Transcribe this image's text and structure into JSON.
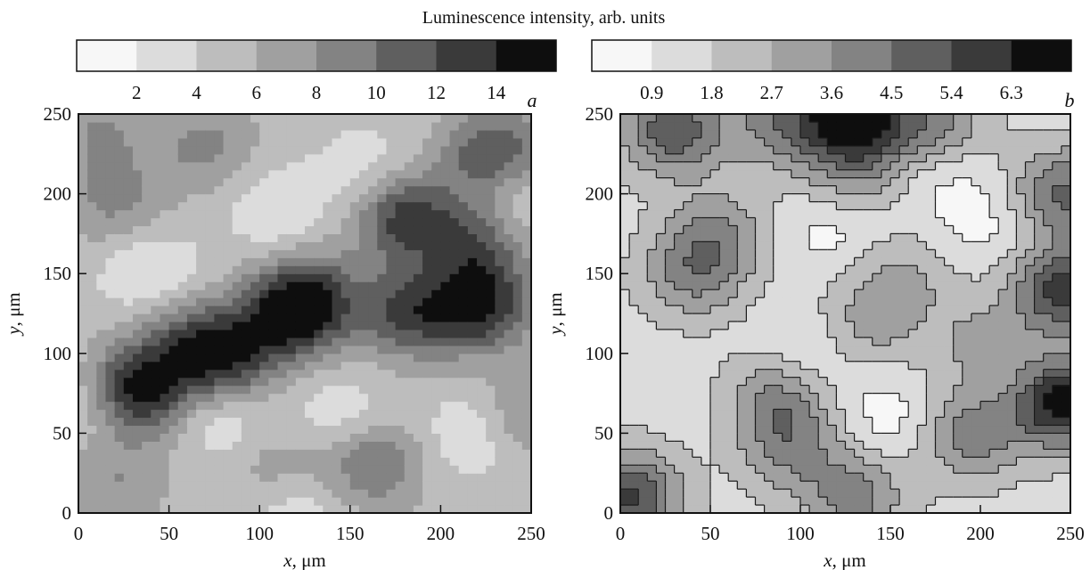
{
  "figure_title": "Luminescence intensity, arb. units",
  "chart_data": [
    {
      "type": "heatmap",
      "panel_label": "a",
      "xlabel_var": "x",
      "xlabel_unit": ", μm",
      "ylabel_var": "y",
      "ylabel_unit": ", μm",
      "xlim": [
        0,
        250
      ],
      "ylim": [
        0,
        250
      ],
      "x_ticks": [
        0,
        50,
        100,
        150,
        200,
        250
      ],
      "y_ticks": [
        0,
        50,
        100,
        150,
        200,
        250
      ],
      "colorbar_ticks": [
        "2",
        "4",
        "6",
        "8",
        "10",
        "12",
        "14"
      ],
      "levels": [
        2,
        4,
        6,
        8,
        10,
        12,
        14
      ],
      "colors": [
        "#f7f7f7",
        "#dcdcdc",
        "#bdbdbd",
        "#a0a0a0",
        "#838383",
        "#5f5f5f",
        "#3a3a3a",
        "#0e0e0e"
      ],
      "contour_lines": false,
      "background_value": 5,
      "features": [
        {
          "x": 32,
          "y": 77,
          "value": 15.5
        },
        {
          "x": 80,
          "y": 96,
          "value": 13
        },
        {
          "x": 115,
          "y": 122,
          "value": 12.5
        },
        {
          "x": 128,
          "y": 136,
          "value": 11.5
        },
        {
          "x": 60,
          "y": 110,
          "value": 9.5
        },
        {
          "x": 180,
          "y": 186,
          "value": 13
        },
        {
          "x": 182,
          "y": 125,
          "value": 12
        },
        {
          "x": 222,
          "y": 130,
          "value": 14
        },
        {
          "x": 230,
          "y": 224,
          "value": 13
        },
        {
          "x": 220,
          "y": 170,
          "value": 11
        },
        {
          "x": 162,
          "y": 32,
          "value": 10.5
        },
        {
          "x": 110,
          "y": 28,
          "value": 8
        },
        {
          "x": 20,
          "y": 20,
          "value": 8
        },
        {
          "x": 20,
          "y": 195,
          "value": 8.5
        },
        {
          "x": 70,
          "y": 230,
          "value": 8.5
        },
        {
          "x": 12,
          "y": 240,
          "value": 8
        },
        {
          "x": 245,
          "y": 60,
          "value": 9
        },
        {
          "x": 40,
          "y": 150,
          "value": 1.5
        },
        {
          "x": 110,
          "y": 190,
          "value": 2
        },
        {
          "x": 80,
          "y": 60,
          "value": 1.8
        },
        {
          "x": 145,
          "y": 60,
          "value": 2
        },
        {
          "x": 220,
          "y": 50,
          "value": 1.5
        },
        {
          "x": 160,
          "y": 215,
          "value": 2.5
        },
        {
          "x": 240,
          "y": 200,
          "value": 1.5
        },
        {
          "x": 5,
          "y": 70,
          "value": 2
        },
        {
          "x": 120,
          "y": 5,
          "value": 2
        }
      ]
    },
    {
      "type": "heatmap",
      "panel_label": "b",
      "xlabel_var": "x",
      "xlabel_unit": ", μm",
      "ylabel_var": "y",
      "ylabel_unit": ", μm",
      "xlim": [
        0,
        250
      ],
      "ylim": [
        0,
        250
      ],
      "x_ticks": [
        0,
        50,
        100,
        150,
        200,
        250
      ],
      "y_ticks": [
        0,
        50,
        100,
        150,
        200,
        250
      ],
      "colorbar_ticks": [
        "0.9",
        "1.8",
        "2.7",
        "3.6",
        "4.5",
        "5.4",
        "6.3"
      ],
      "levels": [
        0.9,
        1.8,
        2.7,
        3.6,
        4.5,
        5.4,
        6.3
      ],
      "colors": [
        "#f7f7f7",
        "#dcdcdc",
        "#bdbdbd",
        "#a0a0a0",
        "#838383",
        "#5f5f5f",
        "#3a3a3a",
        "#0e0e0e"
      ],
      "contour_lines": true,
      "background_value": 1.4,
      "features": [
        {
          "x": 40,
          "y": 150,
          "value": 3.8
        },
        {
          "x": 55,
          "y": 175,
          "value": 3.4
        },
        {
          "x": 88,
          "y": 70,
          "value": 3.8
        },
        {
          "x": 95,
          "y": 40,
          "value": 3.4
        },
        {
          "x": 195,
          "y": 50,
          "value": 4.2
        },
        {
          "x": 245,
          "y": 70,
          "value": 7.2
        },
        {
          "x": 245,
          "y": 140,
          "value": 5.8
        },
        {
          "x": 245,
          "y": 200,
          "value": 4.8
        },
        {
          "x": 5,
          "y": 10,
          "value": 5.5
        },
        {
          "x": 30,
          "y": 240,
          "value": 5.2
        },
        {
          "x": 130,
          "y": 248,
          "value": 7
        },
        {
          "x": 90,
          "y": 245,
          "value": 4
        },
        {
          "x": 175,
          "y": 245,
          "value": 4
        },
        {
          "x": 155,
          "y": 145,
          "value": 3
        },
        {
          "x": 200,
          "y": 105,
          "value": 3
        },
        {
          "x": 135,
          "y": 115,
          "value": 3
        },
        {
          "x": 130,
          "y": 10,
          "value": 4
        },
        {
          "x": 130,
          "y": 210,
          "value": 3.2
        },
        {
          "x": 120,
          "y": 180,
          "value": 0.3
        },
        {
          "x": 210,
          "y": 180,
          "value": 0.5
        },
        {
          "x": 110,
          "y": 100,
          "value": 0.4
        },
        {
          "x": 150,
          "y": 60,
          "value": 0.3
        },
        {
          "x": 225,
          "y": 80,
          "value": 0.6
        },
        {
          "x": 180,
          "y": 210,
          "value": 0.5
        }
      ]
    }
  ]
}
